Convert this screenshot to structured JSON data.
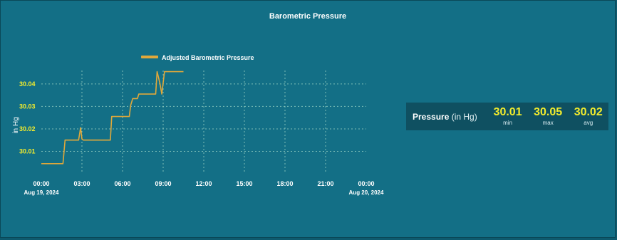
{
  "panel": {
    "title": "Barometric Pressure"
  },
  "colors": {
    "background": "#136f86",
    "series": "#e0a83a",
    "grid": "#9fd8c8",
    "y_tick_text": "#f2ec2d",
    "stat_value": "#f2ec2d"
  },
  "chart_data": {
    "type": "line",
    "ylabel": "in Hg",
    "xlabel": "",
    "legend": {
      "position": "top",
      "entries": [
        "Adjusted Barometric Pressure"
      ]
    },
    "grid": true,
    "xlim": [
      0,
      24
    ],
    "ylim": [
      30.0,
      30.046
    ],
    "x_ticks": [
      {
        "value": 0,
        "label": "00:00",
        "sublabel": "Aug 19, 2024"
      },
      {
        "value": 3,
        "label": "03:00",
        "sublabel": ""
      },
      {
        "value": 6,
        "label": "06:00",
        "sublabel": ""
      },
      {
        "value": 9,
        "label": "09:00",
        "sublabel": ""
      },
      {
        "value": 12,
        "label": "12:00",
        "sublabel": ""
      },
      {
        "value": 15,
        "label": "15:00",
        "sublabel": ""
      },
      {
        "value": 18,
        "label": "18:00",
        "sublabel": ""
      },
      {
        "value": 21,
        "label": "21:00",
        "sublabel": ""
      },
      {
        "value": 24,
        "label": "00:00",
        "sublabel": "Aug 20, 2024"
      }
    ],
    "y_ticks": [
      {
        "value": 30.01,
        "label": "30.01"
      },
      {
        "value": 30.02,
        "label": "30.02"
      },
      {
        "value": 30.03,
        "label": "30.03"
      },
      {
        "value": 30.04,
        "label": "30.04"
      }
    ],
    "series": [
      {
        "name": "Adjusted Barometric Pressure",
        "x": [
          0,
          1.6,
          1.75,
          2.75,
          2.9,
          3.0,
          3.1,
          5.1,
          5.2,
          5.3,
          6.5,
          6.6,
          6.75,
          7.1,
          7.2,
          8.45,
          8.55,
          8.75,
          8.9,
          9.1,
          9.3,
          10.5
        ],
        "y": [
          30.0045,
          30.0045,
          30.015,
          30.015,
          30.0205,
          30.0155,
          30.015,
          30.015,
          30.0255,
          30.0255,
          30.0255,
          30.0305,
          30.0335,
          30.0335,
          30.0355,
          30.0355,
          30.0455,
          30.0405,
          30.0355,
          30.0455,
          30.0455,
          30.0455
        ]
      }
    ]
  },
  "stats": {
    "label": "Pressure",
    "unit": "(in Hg)",
    "items": [
      {
        "value": "30.01",
        "label": "min"
      },
      {
        "value": "30.05",
        "label": "max"
      },
      {
        "value": "30.02",
        "label": "avg"
      }
    ]
  }
}
